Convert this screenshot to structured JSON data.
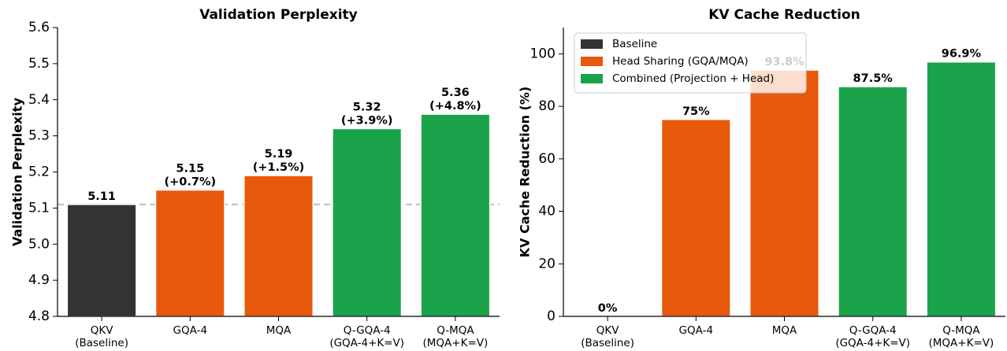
{
  "chart_data": [
    {
      "type": "bar",
      "title": "Validation Perplexity",
      "ylabel": "Validation Perplexity",
      "xlabel": "",
      "categories": [
        "QKV\n(Baseline)",
        "GQA-4",
        "MQA",
        "Q-GQA-4\n(GQA-4+K=V)",
        "Q-MQA\n(MQA+K=V)"
      ],
      "values": [
        5.11,
        5.15,
        5.19,
        5.32,
        5.36
      ],
      "bar_labels": [
        [
          "5.11"
        ],
        [
          "5.15",
          "(+0.7%)"
        ],
        [
          "5.19",
          "(+1.5%)"
        ],
        [
          "5.32",
          "(+3.9%)"
        ],
        [
          "5.36",
          "(+4.8%)"
        ]
      ],
      "ylim": [
        4.8,
        5.6
      ],
      "yticks": [
        "4.8",
        "4.9",
        "5.0",
        "5.1",
        "5.2",
        "5.3",
        "5.4",
        "5.5",
        "5.6"
      ],
      "baseline_value": 5.11,
      "colors": [
        "#333333",
        "#e8590c",
        "#e8590c",
        "#1aa34a",
        "#1aa34a"
      ],
      "grid": false,
      "legend": "none"
    },
    {
      "type": "bar",
      "title": "KV Cache Reduction",
      "ylabel": "KV Cache Reduction (%)",
      "xlabel": "",
      "categories": [
        "QKV\n(Baseline)",
        "GQA-4",
        "MQA",
        "Q-GQA-4\n(GQA-4+K=V)",
        "Q-MQA\n(MQA+K=V)"
      ],
      "values": [
        0,
        75,
        93.8,
        87.5,
        96.9
      ],
      "bar_labels": [
        "0%",
        "75%",
        "93.8%",
        "87.5%",
        "96.9%"
      ],
      "ylim": [
        0,
        110
      ],
      "yticks": [
        "0",
        "20",
        "40",
        "60",
        "80",
        "100"
      ],
      "colors": [
        "#333333",
        "#e8590c",
        "#e8590c",
        "#1aa34a",
        "#1aa34a"
      ],
      "grid": false,
      "legend_position": "top-left",
      "legend": [
        {
          "label": "Baseline",
          "color": "#333333"
        },
        {
          "label": "Head Sharing (GQA/MQA)",
          "color": "#e8590c"
        },
        {
          "label": "Combined (Projection + Head)",
          "color": "#1aa34a"
        }
      ]
    }
  ]
}
